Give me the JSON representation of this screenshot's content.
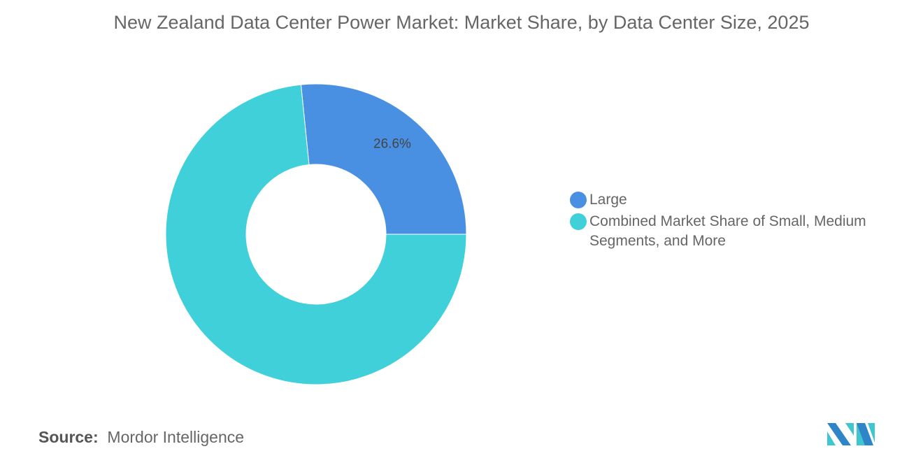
{
  "chart_data": {
    "type": "pie",
    "variant": "donut",
    "title": "New Zealand Data Center Power Market: Market Share, by Data Center Size, 2025",
    "slices": [
      {
        "name": "Large",
        "value": 26.6,
        "label": "26.6%",
        "color": "#4a90e2"
      },
      {
        "name": "Combined Market Share of Small, Medium Segments, and More",
        "value": 73.4,
        "label": "",
        "color": "#3fd0da"
      }
    ],
    "legend_placement": "right"
  },
  "source": {
    "label": "Source:",
    "value": "Mordor Intelligence"
  },
  "logo": {
    "text": "Mordor Intelligence",
    "colors": [
      "#2e86c8",
      "#3fc6cf"
    ]
  }
}
